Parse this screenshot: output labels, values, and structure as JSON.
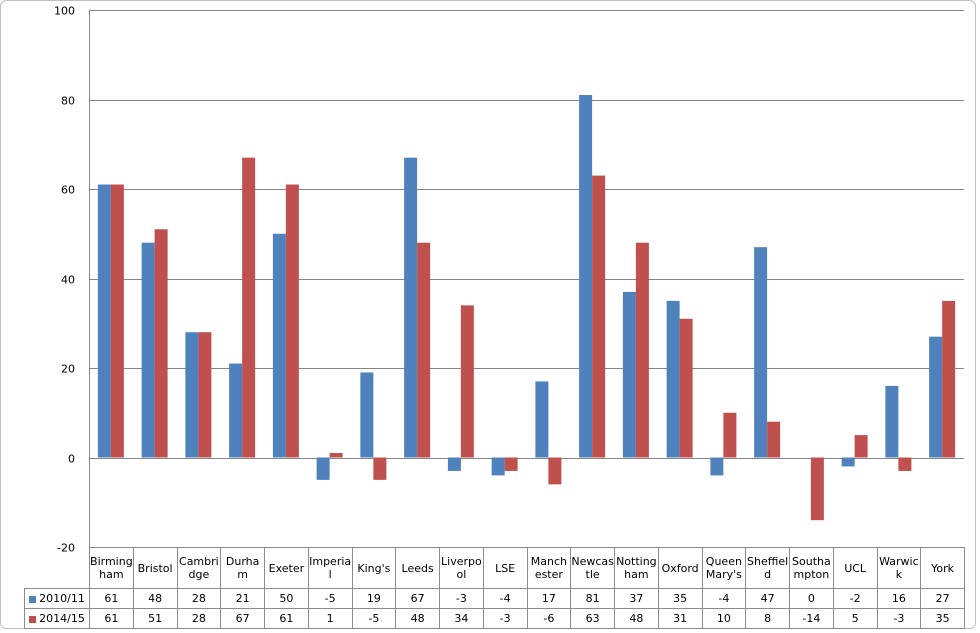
{
  "chart_data": {
    "type": "bar",
    "title": "",
    "xlabel": "",
    "ylabel": "",
    "ylim": [
      -20,
      100
    ],
    "yticks": [
      "-20",
      "0",
      "20",
      "40",
      "60",
      "80",
      "100"
    ],
    "grid": true,
    "legend_placement": "data-table-left",
    "categories": [
      "Birmingham",
      "Bristol",
      "Cambridge",
      "Durham",
      "Exeter",
      "Imperial",
      "King's",
      "Leeds",
      "Liverpool",
      "LSE",
      "Manchester",
      "Newcastle",
      "Nottingham",
      "Oxford",
      "Queen Mary's",
      "Sheffield",
      "Southampton",
      "UCL",
      "Warwick",
      "York"
    ],
    "series": [
      {
        "name": "2010/11",
        "color": "#4F81BD",
        "values": [
          61,
          48,
          28,
          21,
          50,
          -5,
          19,
          67,
          -3,
          -4,
          17,
          81,
          37,
          35,
          -4,
          47,
          0,
          -2,
          16,
          27
        ]
      },
      {
        "name": "2014/15",
        "color": "#C0504D",
        "values": [
          61,
          51,
          28,
          67,
          61,
          1,
          -5,
          48,
          34,
          -3,
          -6,
          63,
          48,
          31,
          10,
          8,
          -14,
          5,
          -3,
          35
        ]
      }
    ]
  }
}
